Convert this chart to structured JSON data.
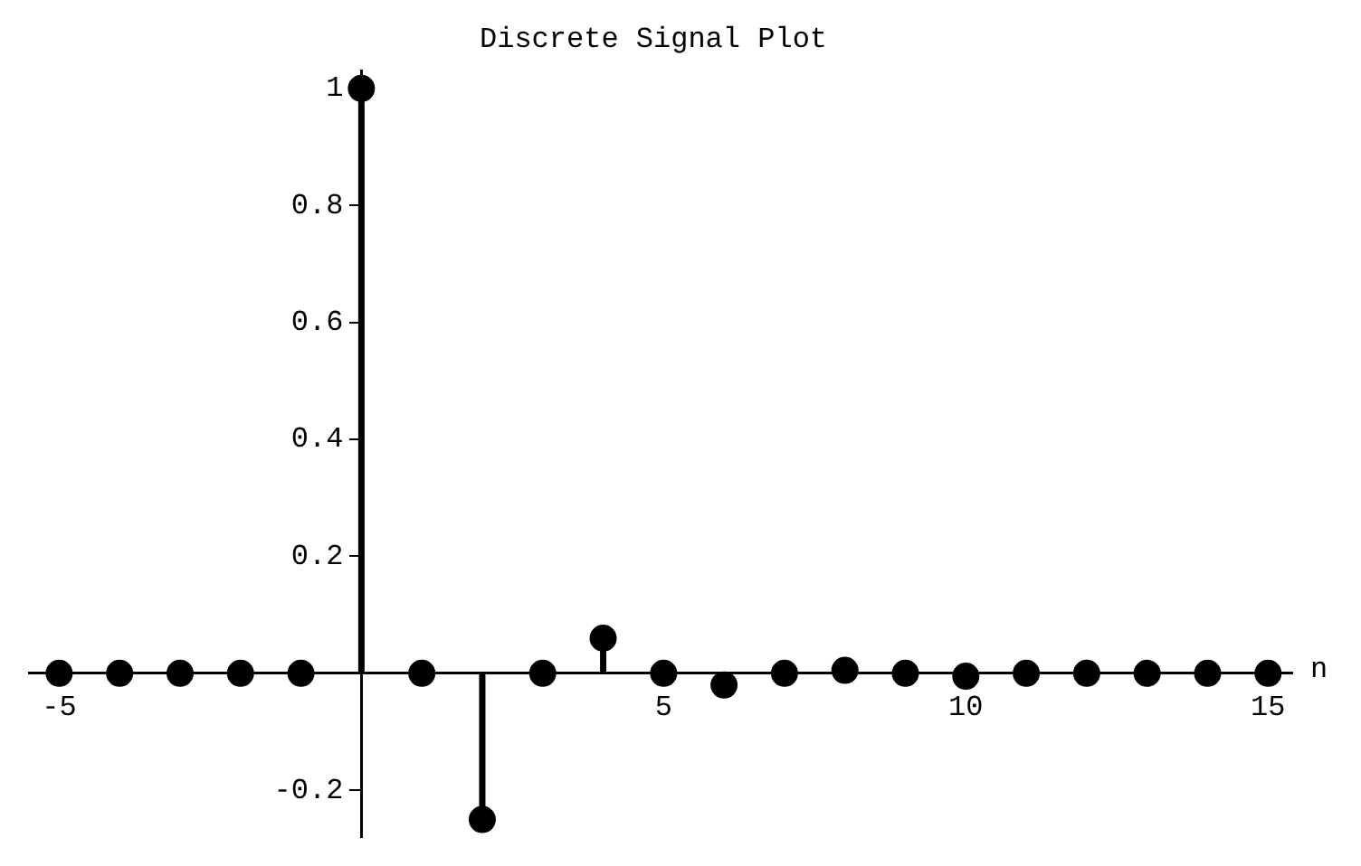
{
  "chart_data": {
    "type": "lollipop",
    "title": "Discrete Signal Plot",
    "xlabel": "n",
    "x": [
      -5,
      -4,
      -3,
      -2,
      -1,
      0,
      1,
      2,
      3,
      4,
      5,
      6,
      7,
      8,
      9,
      10,
      11,
      12,
      13,
      14,
      15
    ],
    "values": [
      0,
      0,
      0,
      0,
      0,
      1,
      0,
      -0.25,
      0,
      0.06,
      0,
      -0.02,
      0,
      0.005,
      0,
      -0.005,
      0,
      0,
      0,
      0,
      0
    ],
    "color": "#000000",
    "marker": "circle",
    "xlim": [
      -5.5,
      15.4
    ],
    "xticks": [
      -5,
      5,
      10,
      15
    ],
    "ylim": [
      -0.28,
      1.03
    ],
    "yticks": [
      -0.2,
      0.2,
      0.4,
      0.6,
      0.8,
      1
    ],
    "grid": false,
    "legend": false
  }
}
